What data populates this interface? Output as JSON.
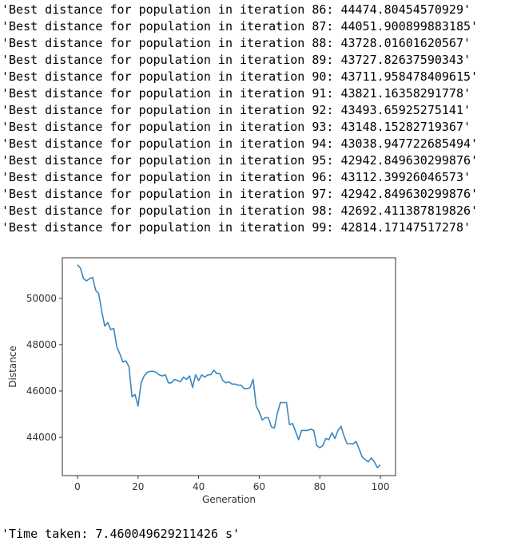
{
  "output": {
    "log_lines": [
      "'Best distance for population in iteration 86: 44474.80454570929'",
      "'Best distance for population in iteration 87: 44051.900899883185'",
      "'Best distance for population in iteration 88: 43728.01601620567'",
      "'Best distance for population in iteration 89: 43727.82637590343'",
      "'Best distance for population in iteration 90: 43711.958478409615'",
      "'Best distance for population in iteration 91: 43821.16358291778'",
      "'Best distance for population in iteration 92: 43493.65925275141'",
      "'Best distance for population in iteration 93: 43148.15282719367'",
      "'Best distance for population in iteration 94: 43038.947722685494'",
      "'Best distance for population in iteration 95: 42942.849630299876'",
      "'Best distance for population in iteration 96: 43112.39926046573'",
      "'Best distance for population in iteration 97: 42942.849630299876'",
      "'Best distance for population in iteration 98: 42692.411387819826'",
      "'Best distance for population in iteration 99: 42814.17147517278'"
    ],
    "time_taken": "'Time taken: 7.460049629211426 s'"
  },
  "chart_data": {
    "type": "line",
    "xlabel": "Generation",
    "ylabel": "Distance",
    "xlim": [
      -5,
      105
    ],
    "ylim": [
      42350,
      51750
    ],
    "xticks": [
      0,
      20,
      40,
      60,
      80,
      100
    ],
    "yticks": [
      44000,
      46000,
      48000,
      50000
    ],
    "grid": false,
    "line_color": "#3a87c0",
    "series": [
      {
        "x": [
          0,
          1,
          2,
          3,
          4,
          5,
          6,
          7,
          8,
          9,
          10,
          11,
          12,
          13,
          14,
          15,
          16,
          17,
          18,
          19,
          20,
          21,
          22,
          23,
          24,
          25,
          26,
          27,
          28,
          29,
          30,
          31,
          32,
          33,
          34,
          35,
          36,
          37,
          38,
          39,
          40,
          41,
          42,
          43,
          44,
          45,
          46,
          47,
          48,
          49,
          50,
          51,
          52,
          53,
          54,
          55,
          56,
          57,
          58,
          59,
          60,
          61,
          62,
          63,
          64,
          65,
          66,
          67,
          68,
          69,
          70,
          71,
          72,
          73,
          74,
          75,
          76,
          77,
          78,
          79,
          80,
          81,
          82,
          83,
          84,
          85,
          86,
          87,
          88,
          89,
          90,
          91,
          92,
          93,
          94,
          95,
          96,
          97,
          98,
          99,
          100
        ],
        "values": [
          51450,
          51300,
          50850,
          50750,
          50850,
          50900,
          50350,
          50200,
          49450,
          48800,
          48950,
          48650,
          48700,
          47900,
          47600,
          47250,
          47300,
          47050,
          45750,
          45850,
          45350,
          46350,
          46650,
          46800,
          46850,
          46850,
          46800,
          46700,
          46650,
          46700,
          46350,
          46350,
          46500,
          46450,
          46400,
          46600,
          46500,
          46650,
          46150,
          46700,
          46450,
          46700,
          46600,
          46700,
          46700,
          46900,
          46750,
          46750,
          46450,
          46350,
          46400,
          46300,
          46300,
          46250,
          46250,
          46100,
          46100,
          46150,
          46500,
          45350,
          45100,
          44750,
          44850,
          44850,
          44450,
          44400,
          45050,
          45500,
          45500,
          45500,
          44550,
          44600,
          44250,
          43900,
          44300,
          44300,
          44300,
          44350,
          44300,
          43650,
          43550,
          43650,
          43950,
          43900,
          44200,
          43950,
          44300,
          44474.8,
          44051.9,
          43728.0,
          43727.8,
          43712.0,
          43821.2,
          43493.7,
          43148.2,
          43038.9,
          42942.8,
          43112.4,
          42942.8,
          42692.4,
          42814.2
        ]
      }
    ]
  }
}
